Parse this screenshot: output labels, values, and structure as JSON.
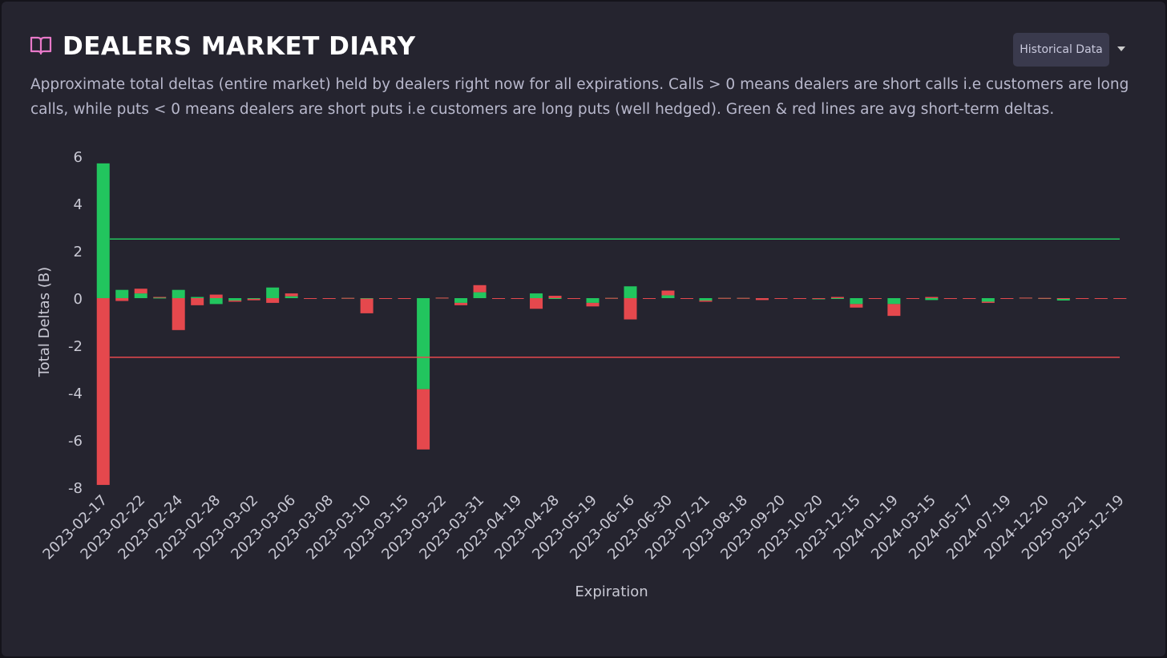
{
  "header": {
    "title": "DEALERS MARKET DIARY",
    "button": "Historical Data"
  },
  "description": "Approximate total deltas (entire market) held by dealers right now for all expirations. Calls > 0 means dealers are short calls i.e customers are long calls, while puts < 0 means dealers are short puts i.e customers are long puts (well hedged). Green & red lines are avg short-term deltas.",
  "chart_data": {
    "type": "stacked_bar",
    "x_label": "Expiration",
    "y_label": "Total Deltas (B)",
    "categories": [
      "2023-02-17",
      null,
      "2023-02-22",
      null,
      "2023-02-24",
      null,
      "2023-02-28",
      null,
      "2023-03-02",
      null,
      "2023-03-06",
      null,
      "2023-03-08",
      null,
      "2023-03-10",
      null,
      "2023-03-15",
      null,
      "2023-03-22",
      null,
      "2023-03-31",
      null,
      "2023-04-19",
      null,
      "2023-04-28",
      null,
      "2023-05-19",
      null,
      "2023-06-16",
      null,
      "2023-06-30",
      null,
      "2023-07-21",
      null,
      "2023-08-18",
      null,
      "2023-09-20",
      null,
      "2023-10-20",
      null,
      "2023-12-15",
      null,
      "2024-01-19",
      null,
      "2024-03-15",
      null,
      "2024-05-17",
      null,
      "2024-07-19",
      null,
      "2024-12-20",
      null,
      "2025-03-21",
      null,
      "2025-12-19"
    ],
    "series": [
      {
        "color": "#22c55e",
        "values": [
          5.7,
          0.35,
          0.2,
          0.02,
          0.35,
          0.05,
          -0.25,
          -0.1,
          -0.03,
          0.45,
          0.08,
          0,
          0,
          0.01,
          -0.02,
          -0.02,
          0,
          -3.85,
          0.02,
          -0.2,
          0.25,
          0,
          -0.02,
          0.2,
          0,
          0,
          -0.2,
          0.01,
          0.5,
          -0.02,
          0.12,
          -0.02,
          -0.1,
          0.01,
          0.01,
          0,
          0,
          0,
          -0.05,
          0,
          -0.25,
          0,
          -0.25,
          0,
          -0.08,
          0,
          0,
          -0.15,
          -0.02,
          0.02,
          0,
          -0.1,
          0,
          -0.02,
          -0.03
        ]
      },
      {
        "color": "#e5484d",
        "values": [
          -7.9,
          -0.12,
          0.2,
          0.03,
          -1.35,
          -0.3,
          0.15,
          -0.05,
          -0.06,
          -0.2,
          0.12,
          -0.03,
          0,
          0,
          -0.62,
          0,
          -0.02,
          -2.55,
          0,
          -0.1,
          0.3,
          -0.01,
          0,
          -0.45,
          0.1,
          0,
          -0.15,
          0,
          -0.9,
          0,
          0.2,
          0,
          -0.05,
          0,
          0,
          -0.08,
          0,
          -0.03,
          0,
          0.05,
          -0.15,
          -0.02,
          -0.5,
          0,
          0.05,
          0,
          0,
          -0.05,
          0,
          0,
          0.01,
          0,
          0,
          0,
          0
        ]
      }
    ],
    "reference_lines": [
      {
        "value": 2.5,
        "color": "#22c55e"
      },
      {
        "value": -2.5,
        "color": "#e5484d"
      }
    ],
    "ylim": [
      -8,
      6
    ],
    "yticks": [
      -8,
      -6,
      -4,
      -2,
      0,
      2,
      4,
      6
    ],
    "grid": false
  }
}
